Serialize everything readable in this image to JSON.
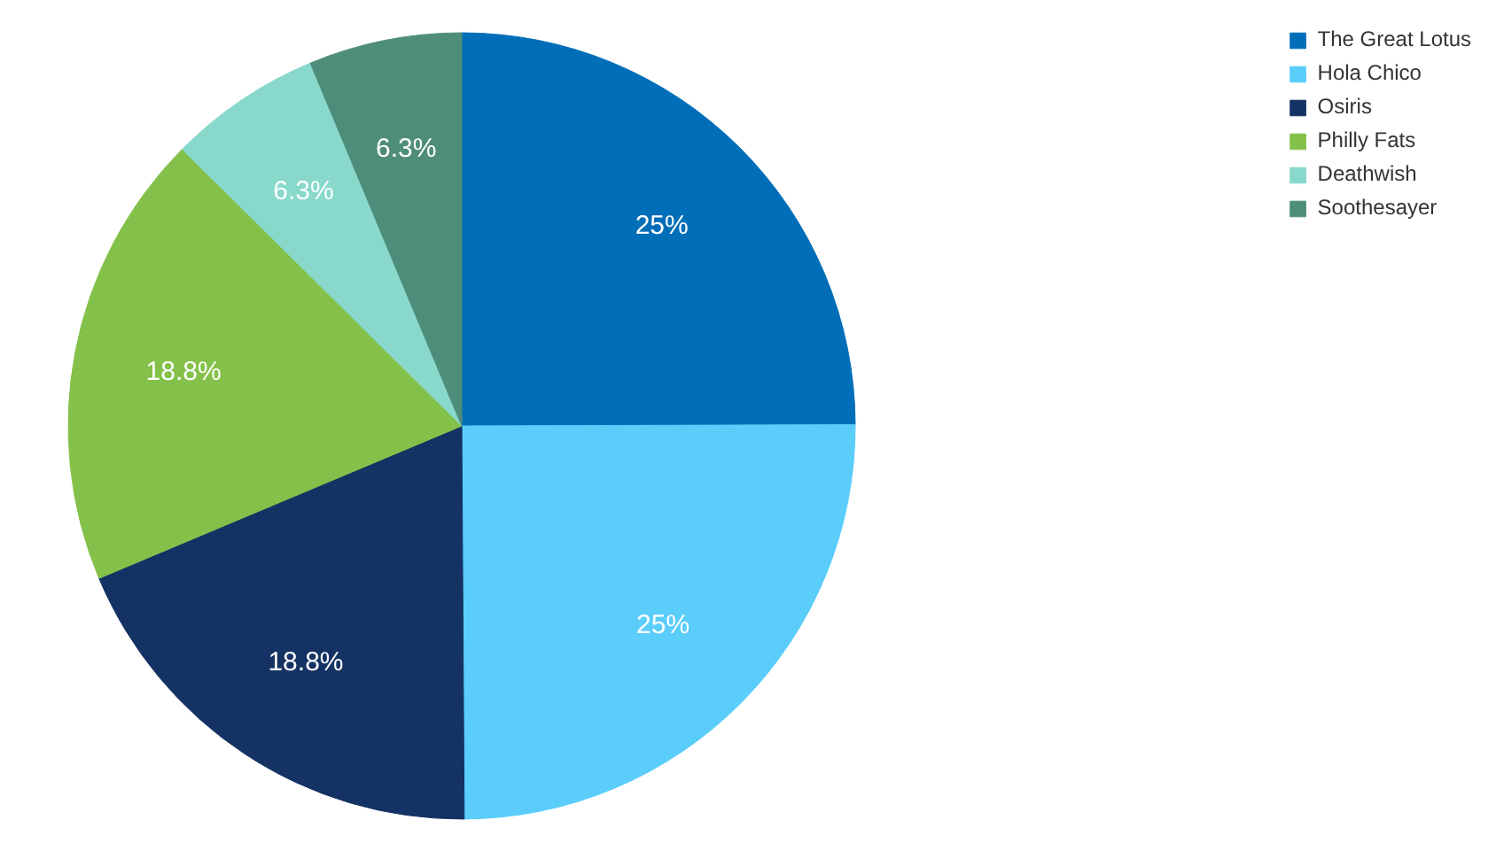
{
  "chart_data": {
    "type": "pie",
    "categories": [
      "The Great Lotus",
      "Hola Chico",
      "Osiris",
      "Philly Fats",
      "Deathwish",
      "Soothesayer"
    ],
    "values": [
      25,
      25,
      18.8,
      18.8,
      6.3,
      6.3
    ],
    "colors": [
      "#006eb8",
      "#5acdfa",
      "#143263",
      "#84c14a",
      "#88d8cb",
      "#4e8d7a"
    ],
    "value_labels": [
      "25%",
      "25%",
      "18.8%",
      "18.8%",
      "6.3%",
      "6.3%"
    ],
    "legend": "top right"
  }
}
